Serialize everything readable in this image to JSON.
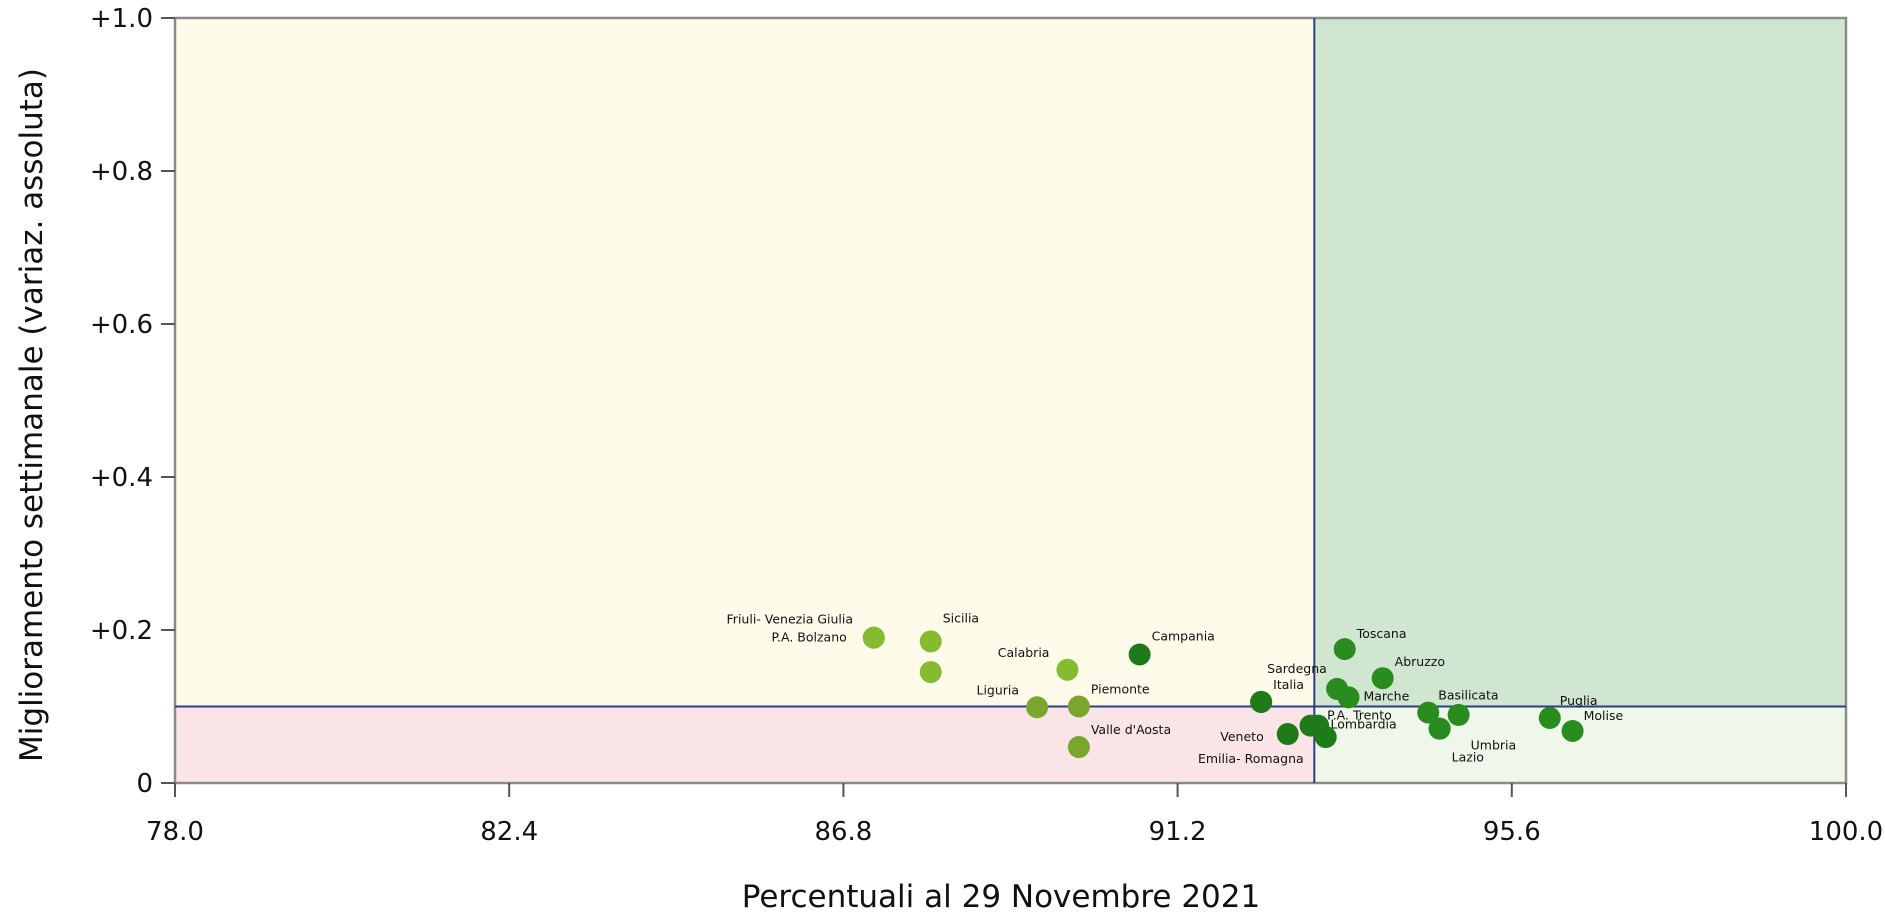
{
  "chart_data": {
    "type": "scatter",
    "title": "",
    "xlabel": "Percentuali al 29 Novembre 2021",
    "ylabel": "Miglioramento settimanale (variaz. assoluta)",
    "xlim": [
      78.0,
      100.0
    ],
    "ylim": [
      0,
      1.0
    ],
    "x_ticks": [
      {
        "value": 78.0,
        "label": "78.0"
      },
      {
        "value": 82.4,
        "label": "82.4"
      },
      {
        "value": 86.8,
        "label": "86.8"
      },
      {
        "value": 91.2,
        "label": "91.2"
      },
      {
        "value": 95.6,
        "label": "95.6"
      },
      {
        "value": 100.0,
        "label": "100.0"
      }
    ],
    "y_ticks": [
      {
        "value": 0,
        "label": "0"
      },
      {
        "value": 0.2,
        "label": "+0.2"
      },
      {
        "value": 0.4,
        "label": "+0.4"
      },
      {
        "value": 0.6,
        "label": "+0.6"
      },
      {
        "value": 0.8,
        "label": "+0.8"
      },
      {
        "value": 1.0,
        "label": "+1.0"
      }
    ],
    "grid": false,
    "legend": "none",
    "thresholds": {
      "x": 93.0,
      "y": 0.1
    },
    "quadrant_colors": {
      "top_left": "#fffbea",
      "top_right": "#d0e6d0",
      "bottom_left": "#fbe4e8",
      "bottom_right": "#eff7ea"
    },
    "line_color": "#2c3e80",
    "point_colors": {
      "light": "#85bb2f",
      "olive": "#7aa52e",
      "dark": "#2a8c1f",
      "darker": "#1f7a1a"
    },
    "points": [
      {
        "label": "Friuli- Venezia Giulia",
        "x": 87.2,
        "y": 0.19,
        "color": "light"
      },
      {
        "label": "P.A. Bolzano",
        "x": 87.2,
        "y": 0.19,
        "color": "light"
      },
      {
        "label": "Sicilia",
        "x": 87.95,
        "y": 0.185,
        "color": "light"
      },
      {
        "label": "",
        "x": 87.95,
        "y": 0.145,
        "color": "light"
      },
      {
        "label": "Calabria",
        "x": 89.75,
        "y": 0.148,
        "color": "light"
      },
      {
        "label": "Campania",
        "x": 90.7,
        "y": 0.168,
        "color": "darker"
      },
      {
        "label": "Liguria",
        "x": 89.35,
        "y": 0.099,
        "color": "olive"
      },
      {
        "label": "Piemonte",
        "x": 89.9,
        "y": 0.1,
        "color": "olive"
      },
      {
        "label": "Valle d'Aosta",
        "x": 89.9,
        "y": 0.047,
        "color": "olive"
      },
      {
        "label": "Sardegna",
        "x": 92.3,
        "y": 0.106,
        "color": "darker"
      },
      {
        "label": "Italia",
        "x": 92.3,
        "y": 0.106,
        "color": "darker"
      },
      {
        "label": "Veneto",
        "x": 92.65,
        "y": 0.064,
        "color": "darker"
      },
      {
        "label": "P.A. Trento",
        "x": 93.05,
        "y": 0.075,
        "color": "darker"
      },
      {
        "label": "Emilia- Romagna",
        "x": 93.15,
        "y": 0.06,
        "color": "darker"
      },
      {
        "label": "Lombardia",
        "x": 92.95,
        "y": 0.075,
        "color": "darker"
      },
      {
        "label": "Toscana",
        "x": 93.4,
        "y": 0.175,
        "color": "dark"
      },
      {
        "label": "",
        "x": 93.3,
        "y": 0.123,
        "color": "dark"
      },
      {
        "label": "Marche",
        "x": 93.45,
        "y": 0.112,
        "color": "dark"
      },
      {
        "label": "Abruzzo",
        "x": 93.9,
        "y": 0.137,
        "color": "dark"
      },
      {
        "label": "Basilicata",
        "x": 94.5,
        "y": 0.092,
        "color": "dark"
      },
      {
        "label": "",
        "x": 94.9,
        "y": 0.089,
        "color": "dark"
      },
      {
        "label": "Umbria",
        "x": 94.65,
        "y": 0.071,
        "color": "dark"
      },
      {
        "label": "Lazio",
        "x": 94.65,
        "y": 0.071,
        "color": "dark"
      },
      {
        "label": "Puglia",
        "x": 96.1,
        "y": 0.085,
        "color": "dark"
      },
      {
        "label": "Molise",
        "x": 96.4,
        "y": 0.068,
        "color": "dark"
      }
    ]
  }
}
